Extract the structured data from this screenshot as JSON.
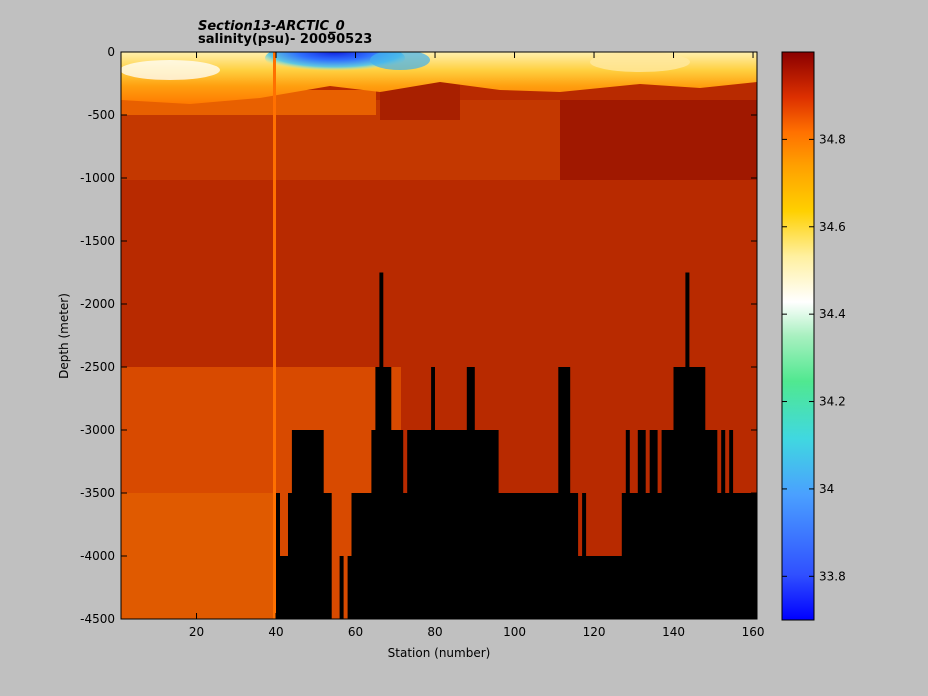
{
  "chart_data": {
    "type": "heatmap",
    "title": "Section13-ARCTIC_0",
    "subtitle": "salinity(psu)- 20090523",
    "xlabel": "Station (number)",
    "ylabel": "Depth (meter)",
    "xlim": [
      1,
      161
    ],
    "ylim": [
      -4500,
      0
    ],
    "xticks": [
      20,
      40,
      60,
      80,
      100,
      120,
      140,
      160
    ],
    "yticks": [
      0,
      -500,
      -1000,
      -1500,
      -2000,
      -2500,
      -3000,
      -3500,
      -4000,
      -4500
    ],
    "colorbar": {
      "range": [
        33.7,
        35.0
      ],
      "ticks": [
        33.8,
        34,
        34.2,
        34.4,
        34.6,
        34.8
      ],
      "tick_labels": [
        "33.8",
        "34",
        "34.2",
        "34.4",
        "34.6",
        "34.8"
      ],
      "colormap": "jet"
    },
    "field": {
      "depth_layers": [
        {
          "top": 0,
          "bottom": -100,
          "salinity_range": [
            33.8,
            34.6
          ],
          "note_min_near_station": 58
        },
        {
          "top": -100,
          "bottom": -300,
          "salinity_range": [
            34.75,
            34.9
          ]
        },
        {
          "top": -300,
          "bottom": -1000,
          "salinity_range": [
            34.88,
            34.93
          ]
        },
        {
          "top": -1000,
          "bottom": -4500,
          "salinity_range": [
            34.9,
            34.94
          ]
        }
      ],
      "orange_vertical_line_station": 40
    },
    "seafloor_mask": [
      [
        40,
        -3500
      ],
      [
        41,
        -3500
      ],
      [
        41,
        -4000
      ],
      [
        43,
        -4000
      ],
      [
        43,
        -3500
      ],
      [
        44,
        -3500
      ],
      [
        44,
        -3000
      ],
      [
        52,
        -3000
      ],
      [
        52,
        -3500
      ],
      [
        54,
        -3500
      ],
      [
        54,
        -4500
      ],
      [
        56,
        -4500
      ],
      [
        56,
        -4000
      ],
      [
        57,
        -4000
      ],
      [
        57,
        -4500
      ],
      [
        58,
        -4500
      ],
      [
        58,
        -4000
      ],
      [
        59,
        -4000
      ],
      [
        59,
        -3500
      ],
      [
        60,
        -3500
      ],
      [
        60,
        -4500
      ],
      [
        60,
        -3500
      ],
      [
        64,
        -3500
      ],
      [
        64,
        -3000
      ],
      [
        65,
        -3000
      ],
      [
        65,
        -2500
      ],
      [
        66,
        -2500
      ],
      [
        66,
        -1750
      ],
      [
        67,
        -1750
      ],
      [
        67,
        -2500
      ],
      [
        69,
        -2500
      ],
      [
        69,
        -3000
      ],
      [
        72,
        -3000
      ],
      [
        72,
        -3500
      ],
      [
        73,
        -3500
      ],
      [
        73,
        -3000
      ],
      [
        79,
        -3000
      ],
      [
        79,
        -2500
      ],
      [
        80,
        -2500
      ],
      [
        80,
        -3000
      ],
      [
        88,
        -3000
      ],
      [
        88,
        -2500
      ],
      [
        90,
        -2500
      ],
      [
        90,
        -3000
      ],
      [
        96,
        -3000
      ],
      [
        96,
        -3500
      ],
      [
        111,
        -3500
      ],
      [
        111,
        -2500
      ],
      [
        114,
        -2500
      ],
      [
        114,
        -3500
      ],
      [
        116,
        -3500
      ],
      [
        116,
        -4000
      ],
      [
        117,
        -4000
      ],
      [
        117,
        -3500
      ],
      [
        118,
        -3500
      ],
      [
        118,
        -4000
      ],
      [
        127,
        -4000
      ],
      [
        127,
        -3500
      ],
      [
        128,
        -3500
      ],
      [
        128,
        -3000
      ],
      [
        129,
        -3000
      ],
      [
        129,
        -3500
      ],
      [
        131,
        -3500
      ],
      [
        131,
        -3000
      ],
      [
        133,
        -3000
      ],
      [
        133,
        -3500
      ],
      [
        134,
        -3500
      ],
      [
        134,
        -3000
      ],
      [
        136,
        -3000
      ],
      [
        136,
        -3500
      ],
      [
        137,
        -3500
      ],
      [
        137,
        -3000
      ],
      [
        140,
        -3000
      ],
      [
        140,
        -2500
      ],
      [
        143,
        -2500
      ],
      [
        143,
        -1750
      ],
      [
        144,
        -1750
      ],
      [
        144,
        -2500
      ],
      [
        148,
        -2500
      ],
      [
        148,
        -3000
      ],
      [
        151,
        -3000
      ],
      [
        151,
        -3500
      ],
      [
        152,
        -3500
      ],
      [
        152,
        -3000
      ],
      [
        153,
        -3000
      ],
      [
        153,
        -3500
      ],
      [
        154,
        -3500
      ],
      [
        154,
        -3000
      ],
      [
        155,
        -3000
      ],
      [
        155,
        -3500
      ],
      [
        161,
        -3500
      ],
      [
        161,
        -4500
      ],
      [
        40,
        -4500
      ]
    ]
  }
}
